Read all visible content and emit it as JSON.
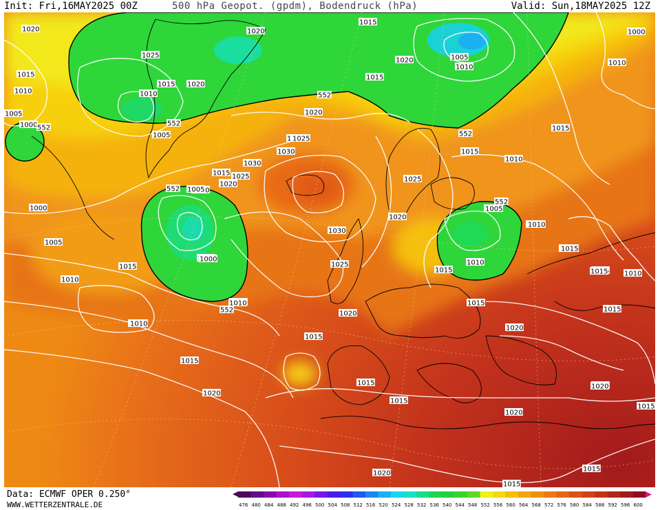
{
  "header": {
    "init": "Init: Fri,16MAY2025 00Z",
    "title": "500 hPa Geopot. (gpdm), Bodendruck (hPa)",
    "valid": "Valid: Sun,18MAY2025 12Z"
  },
  "footer": {
    "source": "Data: ECMWF OPER 0.250°",
    "site": "WWW.WETTERZENTRALE.DE"
  },
  "legend": {
    "labels": [
      "476",
      "480",
      "484",
      "488",
      "492",
      "496",
      "500",
      "504",
      "508",
      "512",
      "516",
      "520",
      "524",
      "528",
      "532",
      "536",
      "540",
      "544",
      "548",
      "552",
      "556",
      "560",
      "564",
      "568",
      "572",
      "576",
      "580",
      "584",
      "588",
      "592",
      "596",
      "600"
    ],
    "colors": [
      "#4b0b5a",
      "#66098a",
      "#8a0aa9",
      "#ad10c8",
      "#c918d8",
      "#a61ae0",
      "#7718e6",
      "#4a1ce8",
      "#2b2fee",
      "#1c5af0",
      "#1c86f2",
      "#1cb0f2",
      "#18d4ee",
      "#16e0c8",
      "#18dc8a",
      "#1ed450",
      "#22d23c",
      "#38d42a",
      "#60d622",
      "#f0f01a",
      "#f5d80e",
      "#f5bd0c",
      "#f3a60c",
      "#ef8f0e",
      "#ea7a12",
      "#e36616",
      "#db5218",
      "#d0421a",
      "#c3331c",
      "#b4261c",
      "#a31a1c",
      "#8d0f1e"
    ]
  },
  "isobar_labels": [
    {
      "text": "1020"
    },
    {
      "text": "1020"
    },
    {
      "text": "1015"
    },
    {
      "text": "1000"
    },
    {
      "text": "1005"
    },
    {
      "text": "1010"
    },
    {
      "text": "1015"
    },
    {
      "text": "1025"
    },
    {
      "text": "1015"
    },
    {
      "text": "1010"
    },
    {
      "text": "1005"
    },
    {
      "text": "1020"
    },
    {
      "text": "1020"
    },
    {
      "text": "1015"
    },
    {
      "text": "1020"
    },
    {
      "text": "1015"
    },
    {
      "text": "1005"
    },
    {
      "text": "1010"
    },
    {
      "text": "1000"
    },
    {
      "text": "1010"
    },
    {
      "text": "1000"
    },
    {
      "text": "1005"
    },
    {
      "text": "1015"
    },
    {
      "text": "1010"
    },
    {
      "text": "1010"
    },
    {
      "text": "1020"
    },
    {
      "text": "1025"
    },
    {
      "text": "1030"
    },
    {
      "text": "1030"
    },
    {
      "text": "1015"
    },
    {
      "text": "1025"
    },
    {
      "text": "1020"
    },
    {
      "text": "1010"
    },
    {
      "text": "1005"
    },
    {
      "text": "1000"
    },
    {
      "text": "1010"
    },
    {
      "text": "1010"
    },
    {
      "text": "1015"
    },
    {
      "text": "1020"
    },
    {
      "text": "1030"
    },
    {
      "text": "1025"
    },
    {
      "text": "1020"
    },
    {
      "text": "1015"
    },
    {
      "text": "1015"
    },
    {
      "text": "1015"
    },
    {
      "text": "1020"
    },
    {
      "text": "1025"
    },
    {
      "text": "1020"
    },
    {
      "text": "1015"
    },
    {
      "text": "1010"
    },
    {
      "text": "1010"
    },
    {
      "text": "1005"
    },
    {
      "text": "1010"
    },
    {
      "text": "1015"
    },
    {
      "text": "1015"
    },
    {
      "text": "1015"
    },
    {
      "text": "1015"
    },
    {
      "text": "1020"
    },
    {
      "text": "1010"
    },
    {
      "text": "1015"
    },
    {
      "text": "1015"
    },
    {
      "text": "1020"
    },
    {
      "text": "1015"
    },
    {
      "text": "1015"
    },
    {
      "text": "1020"
    },
    {
      "text": "1015"
    },
    {
      "text": "1010"
    },
    {
      "text": "1010"
    },
    {
      "text": "1015"
    },
    {
      "text": "1015"
    },
    {
      "text": "1005"
    },
    {
      "text": "1000"
    },
    {
      "text": "1010"
    },
    {
      "text": "1015"
    },
    {
      "text": "1020"
    }
  ],
  "contour_labels": [
    {
      "text": "552"
    },
    {
      "text": "552"
    },
    {
      "text": "552"
    },
    {
      "text": "552"
    },
    {
      "text": "552"
    },
    {
      "text": "552"
    },
    {
      "text": "552"
    }
  ]
}
